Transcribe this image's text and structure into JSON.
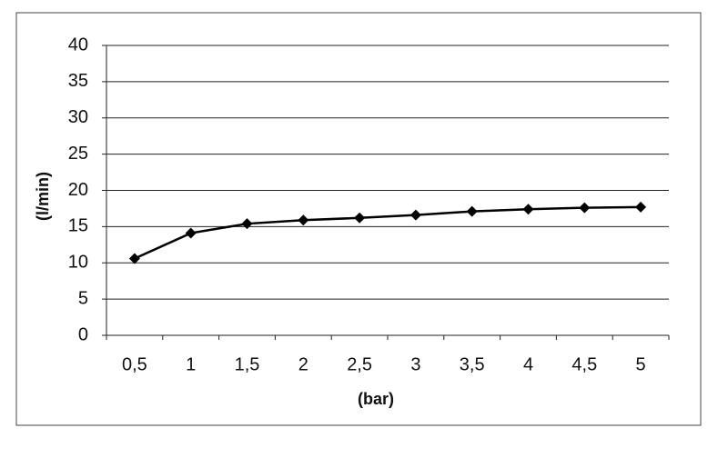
{
  "chart_data": {
    "type": "line",
    "x_label": "(bar)",
    "y_label": "(l/min)",
    "categories": [
      "0,5",
      "1",
      "1,5",
      "2",
      "2,5",
      "3",
      "3,5",
      "4",
      "4,5",
      "5"
    ],
    "values": [
      10.6,
      14.1,
      15.4,
      15.9,
      16.2,
      16.6,
      17.1,
      17.4,
      17.6,
      17.7
    ],
    "color": "#000000",
    "ylim": [
      0,
      40
    ],
    "yticks": [
      0,
      5,
      10,
      15,
      20,
      25,
      30,
      35,
      40
    ],
    "grid": true
  }
}
